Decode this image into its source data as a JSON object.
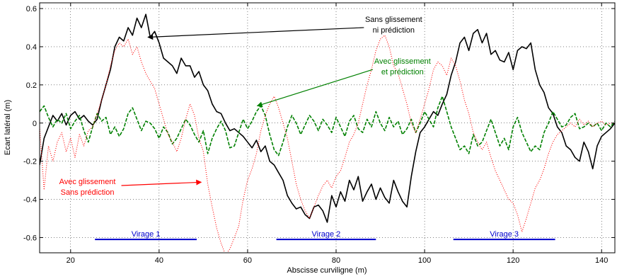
{
  "chart_data": {
    "type": "line",
    "xlabel": "Abscisse curviligne (m)",
    "ylabel": "Ecart latéral (m)",
    "xlim": [
      13,
      143
    ],
    "ylim": [
      -0.68,
      0.63
    ],
    "grid": true,
    "x_ticks": [
      20,
      40,
      60,
      80,
      100,
      120,
      140
    ],
    "x_tick_labels": [
      "20",
      "40",
      "60",
      "80",
      "100",
      "120",
      "140"
    ],
    "y_ticks": [
      -0.6,
      -0.4,
      -0.2,
      0,
      0.2,
      0.4,
      0.6
    ],
    "y_tick_labels": [
      "-0.6",
      "-0.4",
      "-0.2",
      "0",
      "0.2",
      "0.4",
      "0.6"
    ],
    "series": [
      {
        "name": "Sans glissement ni prédiction",
        "color": "#000000",
        "style": "solid",
        "x": [
          13,
          14,
          15,
          16,
          17,
          18,
          19,
          20,
          21,
          22,
          23,
          24,
          25,
          26,
          27,
          28,
          29,
          30,
          31,
          32,
          33,
          34,
          35,
          36,
          37,
          38,
          39,
          40,
          41,
          42,
          43,
          44,
          45,
          46,
          47,
          48,
          49,
          50,
          51,
          52,
          53,
          54,
          55,
          56,
          57,
          58,
          59,
          60,
          61,
          62,
          63,
          64,
          65,
          66,
          67,
          68,
          69,
          70,
          71,
          72,
          73,
          74,
          75,
          76,
          77,
          78,
          79,
          80,
          81,
          82,
          83,
          84,
          85,
          86,
          87,
          88,
          89,
          90,
          91,
          92,
          93,
          94,
          95,
          96,
          97,
          98,
          99,
          100,
          101,
          102,
          103,
          104,
          105,
          106,
          107,
          108,
          109,
          110,
          111,
          112,
          113,
          114,
          115,
          116,
          117,
          118,
          119,
          120,
          121,
          122,
          123,
          124,
          125,
          126,
          127,
          128,
          129,
          130,
          131,
          132,
          133,
          134,
          135,
          136,
          137,
          138,
          139,
          140,
          141,
          142,
          143
        ],
        "y": [
          -0.22,
          -0.08,
          -0.02,
          0.04,
          0.01,
          0.05,
          -0.01,
          0.04,
          0.06,
          0.02,
          0.04,
          0.01,
          -0.01,
          0.02,
          0.12,
          0.2,
          0.28,
          0.4,
          0.45,
          0.43,
          0.5,
          0.46,
          0.55,
          0.5,
          0.57,
          0.45,
          0.48,
          0.42,
          0.34,
          0.32,
          0.3,
          0.26,
          0.34,
          0.3,
          0.3,
          0.24,
          0.27,
          0.2,
          0.17,
          0.1,
          0.06,
          0.05,
          0.0,
          -0.04,
          -0.03,
          -0.05,
          -0.07,
          -0.1,
          -0.13,
          -0.09,
          -0.15,
          -0.12,
          -0.2,
          -0.22,
          -0.26,
          -0.3,
          -0.38,
          -0.42,
          -0.45,
          -0.44,
          -0.48,
          -0.5,
          -0.44,
          -0.43,
          -0.46,
          -0.52,
          -0.38,
          -0.44,
          -0.36,
          -0.41,
          -0.3,
          -0.35,
          -0.28,
          -0.41,
          -0.36,
          -0.32,
          -0.4,
          -0.34,
          -0.39,
          -0.42,
          -0.3,
          -0.36,
          -0.41,
          -0.44,
          -0.28,
          -0.15,
          -0.05,
          -0.02,
          0.02,
          0.06,
          0.04,
          0.1,
          0.15,
          0.25,
          0.32,
          0.42,
          0.45,
          0.38,
          0.47,
          0.49,
          0.42,
          0.47,
          0.36,
          0.38,
          0.33,
          0.32,
          0.37,
          0.28,
          0.38,
          0.4,
          0.39,
          0.42,
          0.28,
          0.2,
          0.16,
          0.08,
          0.05,
          -0.02,
          -0.05,
          -0.12,
          -0.14,
          -0.18,
          -0.2,
          -0.1,
          -0.15,
          -0.24,
          -0.12,
          -0.07,
          -0.05,
          -0.03,
          0.0
        ]
      },
      {
        "name": "Avec glissement et prédiction",
        "color": "#008000",
        "style": "dashed",
        "x": [
          13,
          14,
          15,
          16,
          17,
          18,
          19,
          20,
          21,
          22,
          23,
          24,
          25,
          26,
          27,
          28,
          29,
          30,
          31,
          32,
          33,
          34,
          35,
          36,
          37,
          38,
          39,
          40,
          41,
          42,
          43,
          44,
          45,
          46,
          47,
          48,
          49,
          50,
          51,
          52,
          53,
          54,
          55,
          56,
          57,
          58,
          59,
          60,
          61,
          62,
          63,
          64,
          65,
          66,
          67,
          68,
          69,
          70,
          71,
          72,
          73,
          74,
          75,
          76,
          77,
          78,
          79,
          80,
          81,
          82,
          83,
          84,
          85,
          86,
          87,
          88,
          89,
          90,
          91,
          92,
          93,
          94,
          95,
          96,
          97,
          98,
          99,
          100,
          101,
          102,
          103,
          104,
          105,
          106,
          107,
          108,
          109,
          110,
          111,
          112,
          113,
          114,
          115,
          116,
          117,
          118,
          119,
          120,
          121,
          122,
          123,
          124,
          125,
          126,
          127,
          128,
          129,
          130,
          131,
          132,
          133,
          134,
          135,
          136,
          137,
          138,
          139,
          140,
          141,
          142,
          143
        ],
        "y": [
          0.06,
          0.09,
          0.03,
          -0.02,
          0.02,
          0.0,
          0.05,
          -0.03,
          0.01,
          0.04,
          -0.04,
          -0.1,
          -0.02,
          0.05,
          0.01,
          0.03,
          -0.06,
          -0.02,
          -0.07,
          -0.03,
          0.05,
          0.08,
          0.02,
          -0.04,
          0.01,
          0.0,
          -0.03,
          -0.08,
          -0.02,
          -0.05,
          -0.11,
          -0.08,
          -0.03,
          0.02,
          -0.01,
          -0.06,
          -0.1,
          -0.04,
          -0.16,
          -0.08,
          -0.03,
          0.01,
          -0.04,
          -0.13,
          -0.12,
          -0.05,
          0.02,
          -0.03,
          0.01,
          0.06,
          0.09,
          0.04,
          -0.06,
          -0.14,
          -0.17,
          -0.1,
          -0.02,
          0.04,
          0.0,
          -0.06,
          -0.01,
          0.04,
          0.01,
          -0.04,
          0.02,
          -0.01,
          -0.05,
          0.03,
          -0.02,
          -0.07,
          0.01,
          0.04,
          -0.03,
          -0.05,
          0.02,
          -0.02,
          0.06,
          0.0,
          -0.04,
          0.03,
          -0.02,
          0.01,
          -0.06,
          -0.03,
          0.02,
          -0.05,
          0.0,
          0.06,
          0.02,
          -0.02,
          0.08,
          0.14,
          0.06,
          -0.02,
          -0.08,
          -0.14,
          -0.12,
          -0.16,
          -0.06,
          -0.12,
          -0.1,
          -0.04,
          0.02,
          -0.05,
          -0.12,
          -0.08,
          -0.14,
          -0.02,
          0.03,
          -0.05,
          -0.1,
          -0.15,
          -0.12,
          -0.14,
          -0.05,
          0.0,
          0.06,
          0.02,
          -0.02,
          -0.01,
          0.03,
          0.05,
          -0.03,
          -0.02,
          0.0,
          -0.02,
          0.0,
          -0.04,
          0.0,
          -0.02,
          0.01
        ]
      },
      {
        "name": "Avec glissement Sans prédiction",
        "color": "#ff0000",
        "style": "dotted",
        "x": [
          13,
          14,
          15,
          16,
          17,
          18,
          19,
          20,
          21,
          22,
          23,
          24,
          25,
          26,
          27,
          28,
          29,
          30,
          31,
          32,
          33,
          34,
          35,
          36,
          37,
          38,
          39,
          40,
          41,
          42,
          43,
          44,
          45,
          46,
          47,
          48,
          49,
          50,
          51,
          52,
          53,
          54,
          55,
          56,
          57,
          58,
          59,
          60,
          61,
          62,
          63,
          64,
          65,
          66,
          67,
          68,
          69,
          70,
          71,
          72,
          73,
          74,
          75,
          76,
          77,
          78,
          79,
          80,
          81,
          82,
          83,
          84,
          85,
          86,
          87,
          88,
          89,
          90,
          91,
          92,
          93,
          94,
          95,
          96,
          97,
          98,
          99,
          100,
          101,
          102,
          103,
          104,
          105,
          106,
          107,
          108,
          109,
          110,
          111,
          112,
          113,
          114,
          115,
          116,
          117,
          118,
          119,
          120,
          121,
          122,
          123,
          124,
          125,
          126,
          127,
          128,
          129,
          130,
          131,
          132,
          133,
          134,
          135,
          136,
          137,
          138,
          139,
          140,
          141,
          142,
          143
        ],
        "y": [
          -0.02,
          -0.35,
          -0.12,
          -0.2,
          -0.1,
          -0.05,
          -0.15,
          -0.08,
          -0.18,
          -0.06,
          -0.12,
          -0.04,
          -0.02,
          0.05,
          0.12,
          0.2,
          0.3,
          0.38,
          0.42,
          0.4,
          0.44,
          0.36,
          0.4,
          0.32,
          0.26,
          0.22,
          0.18,
          0.1,
          0.02,
          -0.06,
          -0.1,
          -0.15,
          -0.08,
          0.02,
          0.1,
          0.04,
          -0.08,
          -0.15,
          -0.32,
          -0.44,
          -0.55,
          -0.63,
          -0.69,
          -0.66,
          -0.6,
          -0.54,
          -0.4,
          -0.3,
          -0.24,
          -0.16,
          -0.04,
          0.04,
          0.1,
          0.14,
          0.08,
          0.0,
          -0.08,
          -0.2,
          -0.32,
          -0.4,
          -0.46,
          -0.5,
          -0.44,
          -0.38,
          -0.33,
          -0.3,
          -0.34,
          -0.28,
          -0.25,
          -0.18,
          -0.1,
          -0.06,
          0.0,
          0.1,
          0.2,
          0.28,
          0.38,
          0.44,
          0.46,
          0.4,
          0.3,
          0.26,
          0.18,
          0.1,
          0.0,
          -0.05,
          0.02,
          0.1,
          0.18,
          0.28,
          0.32,
          0.3,
          0.25,
          0.34,
          0.3,
          0.22,
          0.12,
          0.05,
          -0.05,
          -0.1,
          -0.14,
          -0.1,
          -0.18,
          -0.25,
          -0.3,
          -0.35,
          -0.4,
          -0.42,
          -0.48,
          -0.57,
          -0.5,
          -0.42,
          -0.34,
          -0.3,
          -0.24,
          -0.16,
          -0.1,
          -0.06,
          -0.04,
          -0.02,
          0.0,
          -0.02,
          0.02,
          -0.01,
          0.01,
          -0.02,
          0.0,
          0.01,
          -0.01,
          0.0,
          0.0
        ]
      }
    ],
    "annotations": [
      {
        "name": "annotation-sans-glissement",
        "lines": [
          "Sans glissement",
          "ni prédiction"
        ],
        "color": "#000000",
        "text_x": 93,
        "text_y": 0.53,
        "arrow_to": [
          37.5,
          0.45
        ]
      },
      {
        "name": "annotation-avec-glissement-prediction",
        "lines": [
          "Avec glissement",
          "et prédiction"
        ],
        "color": "#008000",
        "text_x": 95,
        "text_y": 0.31,
        "arrow_to": [
          62.2,
          0.09
        ]
      },
      {
        "name": "annotation-avec-glissement-sans-prediction",
        "lines": [
          "Avec glissement",
          "Sans prédiction"
        ],
        "color": "#ff0000",
        "text_x": 23.8,
        "text_y": -0.32,
        "arrow_to": [
          49.5,
          -0.31
        ]
      }
    ],
    "regions": [
      {
        "name": "virage-1",
        "label": "Virage 1",
        "x_start": 25.5,
        "x_end": 48.5,
        "y": -0.61,
        "color": "#0000cc"
      },
      {
        "name": "virage-2",
        "label": "Virage 2",
        "x_start": 66.5,
        "x_end": 89,
        "y": -0.61,
        "color": "#0000cc"
      },
      {
        "name": "virage-3",
        "label": "Virage 3",
        "x_start": 106.5,
        "x_end": 129.5,
        "y": -0.61,
        "color": "#0000cc"
      }
    ]
  }
}
